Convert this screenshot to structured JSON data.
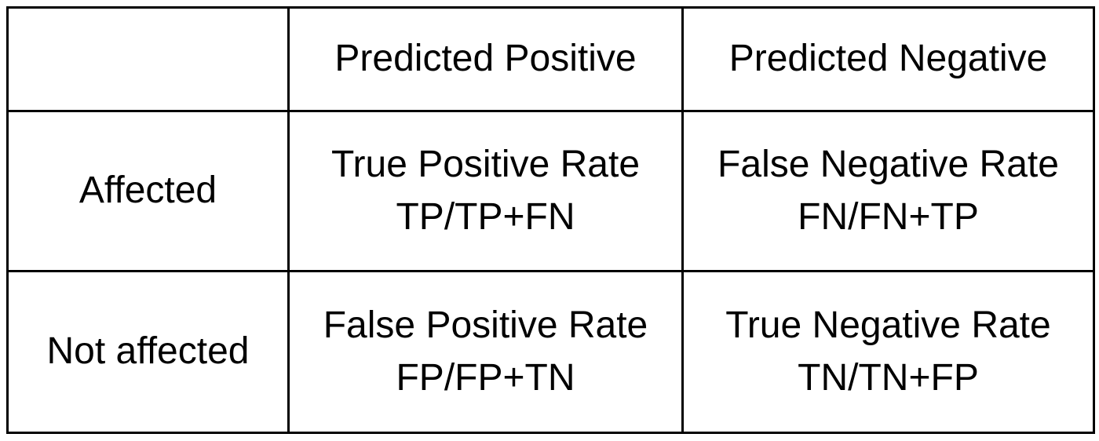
{
  "table": {
    "columns": [
      "",
      "Predicted Positive",
      "Predicted Negative"
    ],
    "rows": [
      {
        "label": "Affected",
        "cells": [
          {
            "name": "True Positive Rate",
            "formula": "TP/TP+FN"
          },
          {
            "name": "False Negative Rate",
            "formula": "FN/FN+TP"
          }
        ]
      },
      {
        "label": "Not affected",
        "cells": [
          {
            "name": "False Positive Rate",
            "formula": "FP/FP+TN"
          },
          {
            "name": "True Negative Rate",
            "formula": "TN/TN+FP"
          }
        ]
      }
    ]
  }
}
